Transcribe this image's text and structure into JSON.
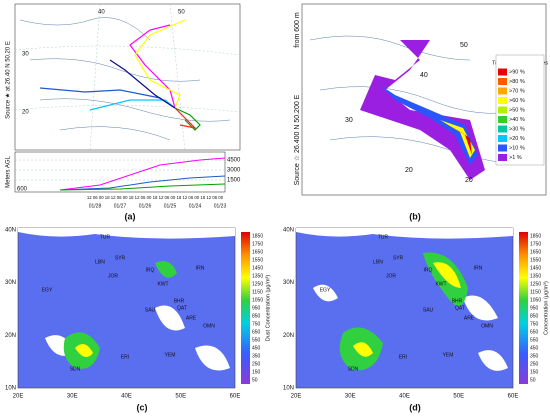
{
  "panel_a": {
    "label": "(a)",
    "source_label": "Source ★ at 26.40 N 50.20 E",
    "height_axis_title": "Meters AGL",
    "height_ticks": [
      "4500",
      "3000",
      "1500",
      "600"
    ],
    "grid_labels": [
      "40",
      "50",
      "30",
      "20"
    ],
    "time_labels": "12 06 00 18 12 06 00 18 12 06 00 18 12 06 00 18 12 06 00 18 12 06 00",
    "date_labels": [
      "01/28",
      "01/27",
      "01/26",
      "01/25",
      "01/24",
      "01/23"
    ]
  },
  "panel_b": {
    "label": "(b)",
    "source_label": "Source ☆ 26.400 N 50.200 E",
    "height_label": "from 600 m",
    "grid_labels": [
      "20",
      "40",
      "50",
      "30",
      "20"
    ],
    "legend_title": "Trajectory Frequencies",
    "legend": [
      {
        "name": ">90 %",
        "color": "#e8000b"
      },
      {
        "name": ">80 %",
        "color": "#ff5a00"
      },
      {
        "name": ">70 %",
        "color": "#ffa800"
      },
      {
        "name": ">60 %",
        "color": "#ffff00"
      },
      {
        "name": ">50 %",
        "color": "#b4f000"
      },
      {
        "name": ">40 %",
        "color": "#34d02a"
      },
      {
        "name": ">30 %",
        "color": "#00c8a0"
      },
      {
        "name": ">20 %",
        "color": "#00c8ff"
      },
      {
        "name": ">10 %",
        "color": "#2a55ff"
      },
      {
        "name": ">1 %",
        "color": "#9b1fe0"
      }
    ]
  },
  "panel_c": {
    "label": "(c)",
    "lat_labels": [
      "40N",
      "30N",
      "20N",
      "10N"
    ],
    "lon_labels": [
      "20E",
      "30E",
      "40E",
      "50E",
      "60E"
    ],
    "colorbar_title": "Dust Concentration (μg/m³)",
    "colorbar_ticks": [
      "1850",
      "1750",
      "1650",
      "1550",
      "1450",
      "1350",
      "1250",
      "1150",
      "1050",
      "950",
      "850",
      "750",
      "650",
      "550",
      "450",
      "350",
      "250",
      "150",
      "50"
    ],
    "countries": [
      "TUR",
      "IRN",
      "IRQ",
      "SYR",
      "LBN",
      "JOR",
      "EGY",
      "SAU",
      "KWT",
      "BHR",
      "QAT",
      "ARE",
      "OMN",
      "YEM",
      "SDN",
      "ERI"
    ]
  },
  "panel_d": {
    "label": "(d)",
    "lat_labels": [
      "40N",
      "30N",
      "20N",
      "10N"
    ],
    "lon_labels": [
      "20E",
      "30E",
      "40E",
      "50E",
      "60E"
    ],
    "colorbar_title": "Concentration (μg/m³)",
    "colorbar_ticks": [
      "1850",
      "1750",
      "1650",
      "1550",
      "1450",
      "1350",
      "1250",
      "1150",
      "1050",
      "950",
      "850",
      "750",
      "650",
      "550",
      "450",
      "350",
      "250",
      "150",
      "50"
    ],
    "countries": [
      "TUR",
      "IRN",
      "IRQ",
      "SYR",
      "LBN",
      "JOR",
      "EGY",
      "SAU",
      "KWT",
      "BHR",
      "QAT",
      "ARE",
      "OMN",
      "YEM",
      "SDN",
      "ERI"
    ]
  }
}
